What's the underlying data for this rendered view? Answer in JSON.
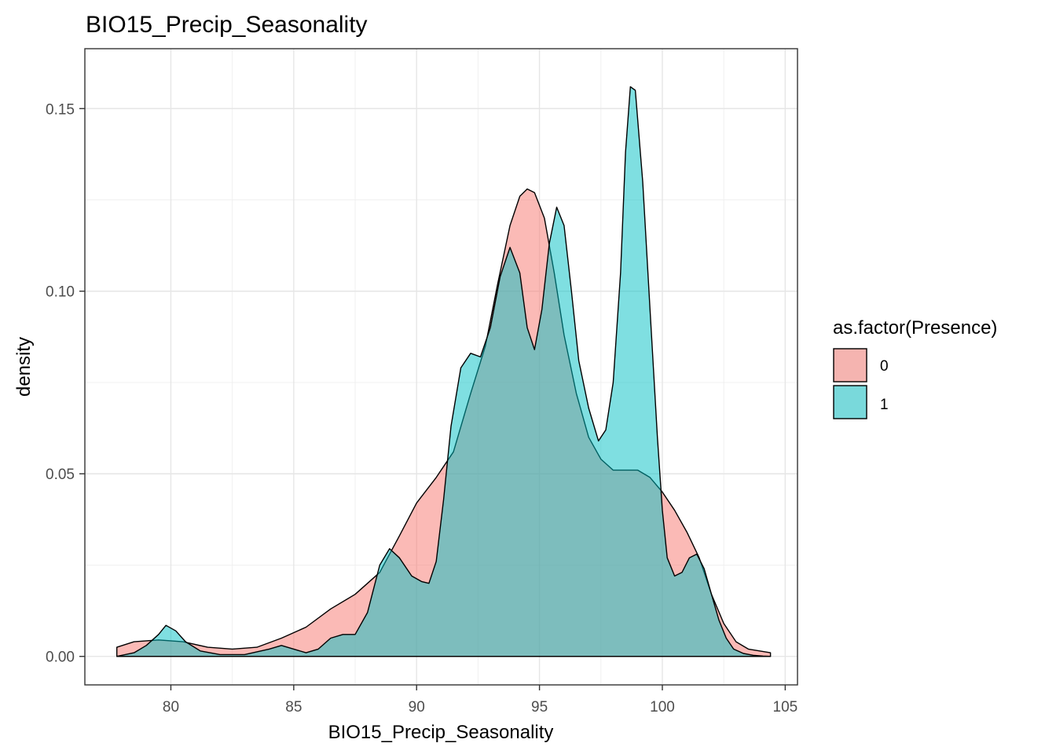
{
  "chart_data": {
    "type": "area",
    "title": "BIO15_Precip_Seasonality",
    "xlabel": "BIO15_Precip_Seasonality",
    "ylabel": "density",
    "xlim": [
      76.5,
      105.5
    ],
    "ylim": [
      -0.0078,
      0.1664
    ],
    "x_ticks": [
      80,
      85,
      90,
      95,
      100,
      105
    ],
    "y_ticks": [
      0.0,
      0.05,
      0.1,
      0.15
    ],
    "x_tick_labels": [
      "80",
      "85",
      "90",
      "95",
      "100",
      "105"
    ],
    "y_tick_labels": [
      "0.00",
      "0.05",
      "0.10",
      "0.15"
    ],
    "grid": true,
    "legend": {
      "title": "as.factor(Presence)",
      "position": "right"
    },
    "fill_opacity": 0.5,
    "series": [
      {
        "name": "0",
        "color": "#F8766D",
        "x": [
          77.8,
          78.5,
          79.5,
          80.5,
          81.5,
          82.5,
          83.5,
          84.5,
          85.5,
          86.5,
          87.5,
          88.5,
          89.3,
          90.0,
          90.8,
          91.5,
          92.2,
          92.8,
          93.3,
          93.8,
          94.2,
          94.5,
          94.8,
          95.2,
          95.6,
          96.0,
          96.5,
          97.0,
          97.5,
          98.0,
          98.5,
          99.0,
          99.5,
          100.0,
          100.5,
          101.0,
          101.5,
          102.0,
          102.5,
          103.0,
          103.5,
          104.4
        ],
        "y": [
          0.0025,
          0.004,
          0.0045,
          0.004,
          0.0025,
          0.002,
          0.0025,
          0.005,
          0.008,
          0.013,
          0.017,
          0.023,
          0.033,
          0.042,
          0.049,
          0.056,
          0.072,
          0.085,
          0.102,
          0.118,
          0.126,
          0.128,
          0.127,
          0.12,
          0.105,
          0.088,
          0.072,
          0.06,
          0.054,
          0.051,
          0.051,
          0.051,
          0.049,
          0.045,
          0.04,
          0.034,
          0.027,
          0.017,
          0.009,
          0.004,
          0.002,
          0.001
        ]
      },
      {
        "name": "1",
        "color": "#00BFC4",
        "x": [
          77.8,
          78.5,
          79.0,
          79.5,
          79.8,
          80.2,
          80.6,
          81.2,
          82.0,
          83.0,
          84.0,
          84.5,
          85.0,
          85.5,
          86.0,
          86.5,
          87.0,
          87.5,
          88.0,
          88.5,
          88.9,
          89.3,
          89.8,
          90.2,
          90.5,
          90.8,
          91.1,
          91.4,
          91.8,
          92.2,
          92.6,
          93.0,
          93.4,
          93.8,
          94.2,
          94.5,
          94.8,
          95.1,
          95.4,
          95.7,
          96.0,
          96.3,
          96.6,
          97.0,
          97.4,
          97.7,
          98.0,
          98.3,
          98.5,
          98.7,
          98.9,
          99.2,
          99.5,
          99.8,
          100.0,
          100.2,
          100.5,
          100.8,
          101.1,
          101.4,
          101.7,
          102.0,
          102.3,
          102.6,
          102.9,
          103.3,
          103.7,
          104.1,
          104.4
        ],
        "y": [
          0.0,
          0.001,
          0.003,
          0.006,
          0.0085,
          0.007,
          0.004,
          0.0015,
          0.0005,
          0.0005,
          0.002,
          0.003,
          0.002,
          0.001,
          0.002,
          0.005,
          0.006,
          0.006,
          0.012,
          0.025,
          0.0295,
          0.027,
          0.022,
          0.0205,
          0.02,
          0.026,
          0.043,
          0.063,
          0.079,
          0.083,
          0.082,
          0.09,
          0.104,
          0.112,
          0.105,
          0.09,
          0.084,
          0.095,
          0.113,
          0.123,
          0.118,
          0.1,
          0.081,
          0.068,
          0.059,
          0.062,
          0.075,
          0.105,
          0.138,
          0.156,
          0.155,
          0.13,
          0.095,
          0.06,
          0.04,
          0.027,
          0.022,
          0.023,
          0.027,
          0.028,
          0.024,
          0.017,
          0.01,
          0.005,
          0.002,
          0.0008,
          0.0003,
          0.0001,
          0.0
        ]
      }
    ]
  }
}
